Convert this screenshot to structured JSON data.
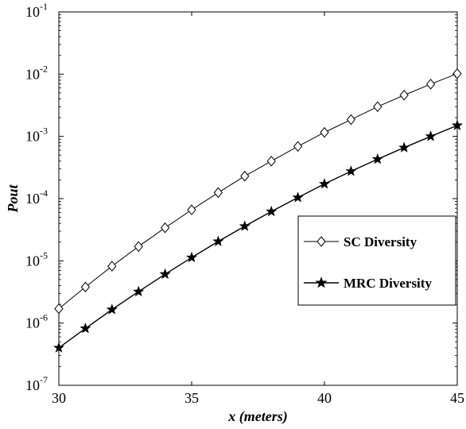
{
  "chart_data": {
    "type": "line",
    "xlabel": "x (meters)",
    "ylabel": "Pout",
    "xlim": [
      30,
      45
    ],
    "ylim": [
      1e-07,
      0.1
    ],
    "yscale": "log",
    "grid": false,
    "x_ticks": [
      30,
      35,
      40,
      45
    ],
    "y_tick_exponents": [
      -7,
      -6,
      -5,
      -4,
      -3,
      -2,
      -1
    ],
    "legend_position": "right-middle",
    "series": [
      {
        "name": "SC Diversity",
        "marker": "diamond-open",
        "color": "#000000",
        "x": [
          30,
          31,
          32,
          33,
          34,
          35,
          36,
          37,
          38,
          39,
          40,
          41,
          42,
          43,
          44,
          45
        ],
        "y": [
          1.7e-06,
          3.8e-06,
          8.2e-06,
          1.7e-05,
          3.4e-05,
          6.6e-05,
          0.000125,
          0.00023,
          0.0004,
          0.00069,
          0.00116,
          0.00186,
          0.003,
          0.0046,
          0.0069,
          0.0102
        ]
      },
      {
        "name": "MRC Diversity",
        "marker": "star-filled",
        "color": "#000000",
        "x": [
          30,
          31,
          32,
          33,
          34,
          35,
          36,
          37,
          38,
          39,
          40,
          41,
          42,
          43,
          44,
          45
        ],
        "y": [
          4e-07,
          8.2e-07,
          1.65e-06,
          3.2e-06,
          6.1e-06,
          1.13e-05,
          2.05e-05,
          3.6e-05,
          6.2e-05,
          0.000104,
          0.000172,
          0.000275,
          0.00043,
          0.00066,
          0.001,
          0.0015
        ]
      }
    ]
  }
}
